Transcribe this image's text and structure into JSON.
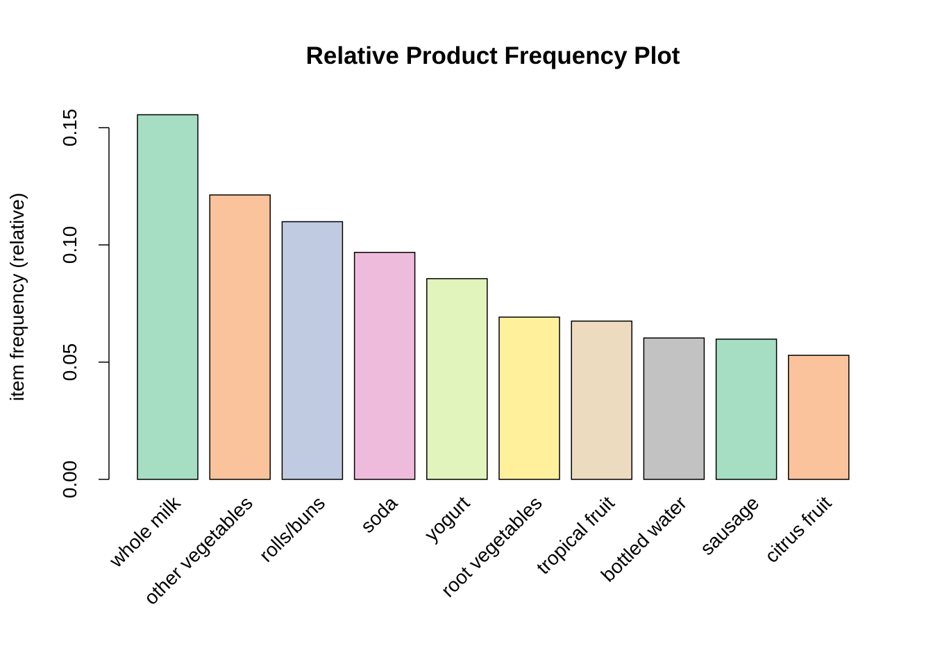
{
  "chart_data": {
    "type": "bar",
    "title": "Relative Product Frequency Plot",
    "xlabel": "",
    "ylabel": "item frequency (relative)",
    "ylim": [
      0,
      0.16
    ],
    "yticks": [
      0.0,
      0.05,
      0.1,
      0.15
    ],
    "ytick_labels": [
      "0.00",
      "0.05",
      "0.10",
      "0.15"
    ],
    "categories": [
      "whole milk",
      "other vegetables",
      "rolls/buns",
      "soda",
      "yogurt",
      "root vegetables",
      "tropical fruit",
      "bottled water",
      "sausage",
      "citrus fruit"
    ],
    "values": [
      0.1555,
      0.1213,
      0.1099,
      0.0968,
      0.0856,
      0.0692,
      0.0675,
      0.0603,
      0.0598,
      0.0529
    ],
    "colors": [
      "#A6DEC3",
      "#FBC39B",
      "#C0CBE2",
      "#EFBBDC",
      "#E0F4BC",
      "#FFF09C",
      "#EDDBC0",
      "#C2C2C2",
      "#A6DEC3",
      "#FBC39B"
    ],
    "grid": false,
    "legend": "none"
  }
}
